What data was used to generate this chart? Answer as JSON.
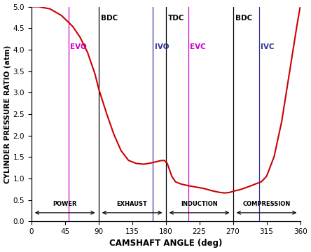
{
  "title": "",
  "xlabel": "CAMSHAFT ANGLE (deg)",
  "ylabel": "CYLINDER PRESSURE RATIO (atm)",
  "xlim": [
    0,
    360
  ],
  "ylim": [
    0,
    5
  ],
  "xticks": [
    0,
    45,
    90,
    135,
    180,
    225,
    270,
    315,
    360
  ],
  "yticks": [
    0,
    0.5,
    1.0,
    1.5,
    2.0,
    2.5,
    3.0,
    3.5,
    4.0,
    4.5,
    5.0
  ],
  "curve_color": "#cc0000",
  "vline_color_black": "#000000",
  "vline_color_magenta": "#cc00cc",
  "vline_color_blue": "#33339a",
  "bdc1_x": 90,
  "tdc_x": 180,
  "bdc2_x": 270,
  "evo_x": 50,
  "ivo_x": 163,
  "evc_x": 210,
  "ivc_x": 305,
  "curve_xp": [
    0,
    10,
    25,
    40,
    55,
    65,
    75,
    85,
    90,
    100,
    110,
    120,
    130,
    140,
    150,
    158,
    165,
    172,
    178,
    182,
    188,
    193,
    200,
    210,
    220,
    230,
    240,
    250,
    258,
    265,
    270,
    278,
    285,
    293,
    300,
    308,
    315,
    325,
    335,
    345,
    355,
    360
  ],
  "curve_yp": [
    5.0,
    5.0,
    4.95,
    4.8,
    4.55,
    4.3,
    3.95,
    3.45,
    3.1,
    2.55,
    2.05,
    1.65,
    1.42,
    1.35,
    1.33,
    1.35,
    1.38,
    1.41,
    1.42,
    1.35,
    1.05,
    0.92,
    0.87,
    0.83,
    0.8,
    0.77,
    0.72,
    0.68,
    0.66,
    0.67,
    0.7,
    0.73,
    0.77,
    0.82,
    0.87,
    0.92,
    1.05,
    1.5,
    2.3,
    3.4,
    4.5,
    5.0
  ],
  "phase_labels": [
    "POWER",
    "EXHAUST",
    "INDUCTION",
    "COMPRESSION"
  ],
  "phase_ranges": [
    [
      0,
      90
    ],
    [
      90,
      180
    ],
    [
      180,
      270
    ],
    [
      270,
      360
    ]
  ]
}
